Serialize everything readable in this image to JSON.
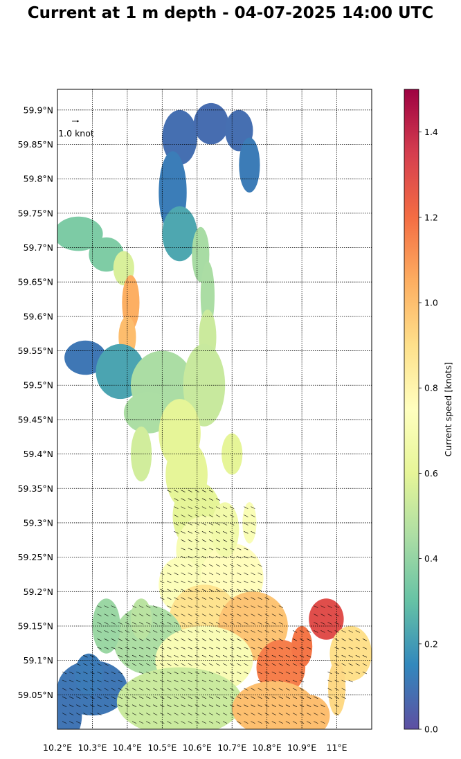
{
  "chart_data": {
    "type": "heatmap",
    "title": "Current at 1 m depth - 04-07-2025 14:00 UTC",
    "x_ticks": [
      "10.2°E",
      "10.3°E",
      "10.4°E",
      "10.5°E",
      "10.6°E",
      "10.7°E",
      "10.8°E",
      "10.9°E",
      "11°E"
    ],
    "x_tick_values": [
      10.2,
      10.3,
      10.4,
      10.5,
      10.6,
      10.7,
      10.8,
      10.9,
      11.0
    ],
    "y_ticks": [
      "59.05°N",
      "59.1°N",
      "59.15°N",
      "59.2°N",
      "59.25°N",
      "59.3°N",
      "59.35°N",
      "59.4°N",
      "59.45°N",
      "59.5°N",
      "59.55°N",
      "59.6°N",
      "59.65°N",
      "59.7°N",
      "59.75°N",
      "59.8°N",
      "59.85°N",
      "59.9°N"
    ],
    "y_tick_values": [
      59.05,
      59.1,
      59.15,
      59.2,
      59.25,
      59.3,
      59.35,
      59.4,
      59.45,
      59.5,
      59.55,
      59.6,
      59.65,
      59.7,
      59.75,
      59.8,
      59.85,
      59.9
    ],
    "xlim": [
      10.2,
      11.1
    ],
    "ylim": [
      59.0,
      59.93
    ],
    "grid": true,
    "colorbar": {
      "label": "Current speed [knots]",
      "range": [
        0.0,
        1.5
      ],
      "ticks": [
        "0.0",
        "0.2",
        "0.4",
        "0.6",
        "0.8",
        "1.0",
        "1.2",
        "1.4"
      ],
      "tick_values": [
        0.0,
        0.2,
        0.4,
        0.6,
        0.8,
        1.0,
        1.2,
        1.4
      ],
      "colormap": "Spectral_r",
      "stops": [
        "#5e4fa2",
        "#3288bd",
        "#66c2a5",
        "#abdda4",
        "#e6f598",
        "#ffffbf",
        "#fee08b",
        "#fdae61",
        "#f46d43",
        "#d53e4f",
        "#9e0142"
      ]
    },
    "quiver_key": {
      "label": "1.0 knot",
      "value": 1.0
    },
    "speed_field": [
      {
        "lon": 10.62,
        "lat": 59.88,
        "speed": 0.08
      },
      {
        "lon": 10.55,
        "lat": 59.78,
        "speed": 0.12
      },
      {
        "lon": 10.3,
        "lat": 59.71,
        "speed": 0.35
      },
      {
        "lon": 10.62,
        "lat": 59.65,
        "speed": 0.45
      },
      {
        "lon": 10.41,
        "lat": 59.6,
        "speed": 1.05
      },
      {
        "lon": 10.47,
        "lat": 59.49,
        "speed": 0.45
      },
      {
        "lon": 10.3,
        "lat": 59.52,
        "speed": 0.1
      },
      {
        "lon": 10.58,
        "lat": 59.42,
        "speed": 0.6
      },
      {
        "lon": 10.62,
        "lat": 59.32,
        "speed": 0.6
      },
      {
        "lon": 10.72,
        "lat": 59.25,
        "speed": 0.75
      },
      {
        "lon": 10.72,
        "lat": 59.14,
        "speed": 0.95
      },
      {
        "lon": 10.82,
        "lat": 59.13,
        "speed": 1.2
      },
      {
        "lon": 10.78,
        "lat": 59.02,
        "speed": 1.0
      },
      {
        "lon": 10.5,
        "lat": 59.1,
        "speed": 0.45
      },
      {
        "lon": 10.25,
        "lat": 59.04,
        "speed": 0.1
      },
      {
        "lon": 10.99,
        "lat": 59.17,
        "speed": 1.3
      },
      {
        "lon": 11.05,
        "lat": 59.1,
        "speed": 0.9
      }
    ]
  },
  "colors": {
    "background": "#ffffff",
    "grid": "#000000",
    "arrow": "#000000"
  }
}
